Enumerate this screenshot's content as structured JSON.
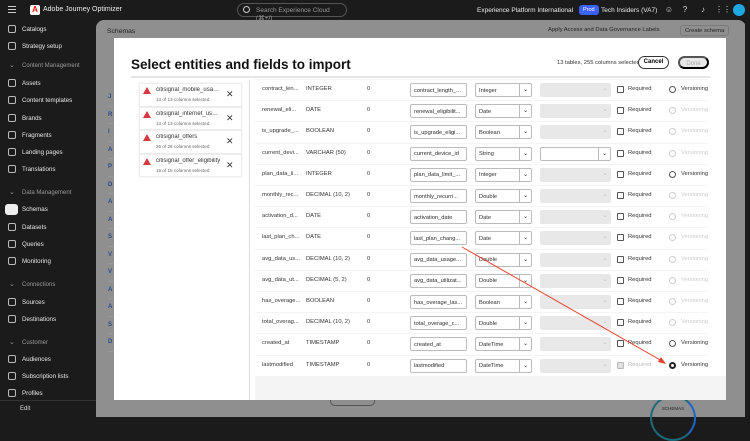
{
  "topbar": {
    "app_name": "Adobe Journey Optimizer",
    "search_placeholder": "Search Experience Cloud (⌘+/)",
    "org": "Experience Platform International",
    "env_badge": "Prod",
    "sandbox": "Tech Insiders (VA7)"
  },
  "sidebar": {
    "items": [
      {
        "label": "Catalogs",
        "icon": "catalog-icon"
      },
      {
        "label": "Strategy setup",
        "icon": "strategy-icon"
      },
      {
        "section": "Content Management"
      },
      {
        "label": "Assets",
        "icon": "assets-icon"
      },
      {
        "label": "Content templates",
        "icon": "template-icon"
      },
      {
        "label": "Brands",
        "icon": "brand-icon"
      },
      {
        "label": "Fragments",
        "icon": "fragments-icon"
      },
      {
        "label": "Landing pages",
        "icon": "landing-icon"
      },
      {
        "label": "Translations",
        "icon": "globe-icon"
      },
      {
        "section": "Data Management"
      },
      {
        "label": "Schemas",
        "icon": "schema-icon",
        "active": true
      },
      {
        "label": "Datasets",
        "icon": "dataset-icon"
      },
      {
        "label": "Queries",
        "icon": "query-icon"
      },
      {
        "label": "Monitoring",
        "icon": "monitor-icon"
      },
      {
        "section": "Connections"
      },
      {
        "label": "Sources",
        "icon": "sources-icon"
      },
      {
        "label": "Destinations",
        "icon": "destinations-icon"
      },
      {
        "section": "Customer"
      },
      {
        "label": "Audiences",
        "icon": "audiences-icon"
      },
      {
        "label": "Subscription lists",
        "icon": "subscription-icon"
      },
      {
        "label": "Profiles",
        "icon": "profile-icon"
      }
    ],
    "edit_label": "Edit"
  },
  "page": {
    "title": "Schemas",
    "apply_labels": "Apply Access and Data Governance Labels",
    "create_schema": "Create schema",
    "donut_label": "SCHEMAS"
  },
  "modal": {
    "title": "Select entities and fields to import",
    "selection_count": "13 tables, 255 columns selected",
    "cancel": "Cancel",
    "done": "Done",
    "entities": [
      {
        "name": "citisignal_mobile_usage...",
        "status": "13 of 13 columns selected"
      },
      {
        "name": "citisignal_internet_usag...",
        "status": "13 of 13 columns selected"
      },
      {
        "name": "citisignal_offers",
        "status": "26 of 26 columns selected"
      },
      {
        "name": "citisignal_offer_eligibility",
        "status": "15 of 15 columns selected"
      }
    ],
    "required_label": "Required",
    "versioning_label": "Versioning",
    "fields": [
      {
        "name": "contract_len...",
        "type": "INTEGER",
        "default": "0",
        "display": "contract_length_...",
        "datatype": "Integer",
        "identity_enabled": false,
        "required": false,
        "versioning": "enabled"
      },
      {
        "name": "renewal_eli...",
        "type": "DATE",
        "default": "0",
        "display": "renewal_eligibilit...",
        "datatype": "Date",
        "identity_enabled": false,
        "required": false,
        "versioning": "disabled"
      },
      {
        "name": "is_upgrade_...",
        "type": "BOOLEAN",
        "default": "0",
        "display": "is_upgrade_eligi...",
        "datatype": "Boolean",
        "identity_enabled": false,
        "required": false,
        "versioning": "disabled"
      },
      {
        "name": "current_devi...",
        "type": "VARCHAR (50)",
        "default": "0",
        "display": "current_device_id",
        "datatype": "String",
        "identity_enabled": true,
        "required": false,
        "versioning": "disabled"
      },
      {
        "name": "plan_data_li...",
        "type": "INTEGER",
        "default": "0",
        "display": "plan_data_limit_...",
        "datatype": "Integer",
        "identity_enabled": false,
        "required": false,
        "versioning": "enabled"
      },
      {
        "name": "monthly_rec...",
        "type": "DECIMAL (10, 2)",
        "default": "0",
        "display": "monthly_recurri...",
        "datatype": "Double",
        "identity_enabled": false,
        "required": false,
        "versioning": "disabled"
      },
      {
        "name": "activation_d...",
        "type": "DATE",
        "default": "0",
        "display": "activation_date",
        "datatype": "Date",
        "identity_enabled": false,
        "required": false,
        "versioning": "disabled"
      },
      {
        "name": "last_plan_ch...",
        "type": "DATE",
        "default": "0",
        "display": "last_plan_chang...",
        "datatype": "Date",
        "identity_enabled": false,
        "required": false,
        "versioning": "disabled"
      },
      {
        "name": "avg_data_us...",
        "type": "DECIMAL (10, 2)",
        "default": "0",
        "display": "avg_data_usage...",
        "datatype": "Double",
        "identity_enabled": false,
        "required": false,
        "versioning": "disabled"
      },
      {
        "name": "avg_data_ut...",
        "type": "DECIMAL (5, 2)",
        "default": "0",
        "display": "avg_data_utilizat...",
        "datatype": "Double",
        "identity_enabled": false,
        "required": false,
        "versioning": "disabled"
      },
      {
        "name": "has_overage...",
        "type": "BOOLEAN",
        "default": "0",
        "display": "has_overage_las...",
        "datatype": "Boolean",
        "identity_enabled": false,
        "required": false,
        "versioning": "disabled"
      },
      {
        "name": "total_overag...",
        "type": "DECIMAL (10, 2)",
        "default": "0",
        "display": "total_overage_c...",
        "datatype": "Double",
        "identity_enabled": false,
        "required": false,
        "versioning": "disabled"
      },
      {
        "name": "created_at",
        "type": "TIMESTAMP",
        "default": "0",
        "display": "created_at",
        "datatype": "DateTime",
        "identity_enabled": false,
        "required": false,
        "versioning": "enabled"
      },
      {
        "name": "lastmodified",
        "type": "TIMESTAMP",
        "default": "0",
        "display": "lastmodified",
        "datatype": "DateTime",
        "identity_enabled": false,
        "required": true,
        "required_disabled": true,
        "versioning": "selected"
      }
    ]
  },
  "colors": {
    "accent": "#3b63fb",
    "warning": "#d7373f",
    "annotation_arrow": "#e8412c"
  }
}
